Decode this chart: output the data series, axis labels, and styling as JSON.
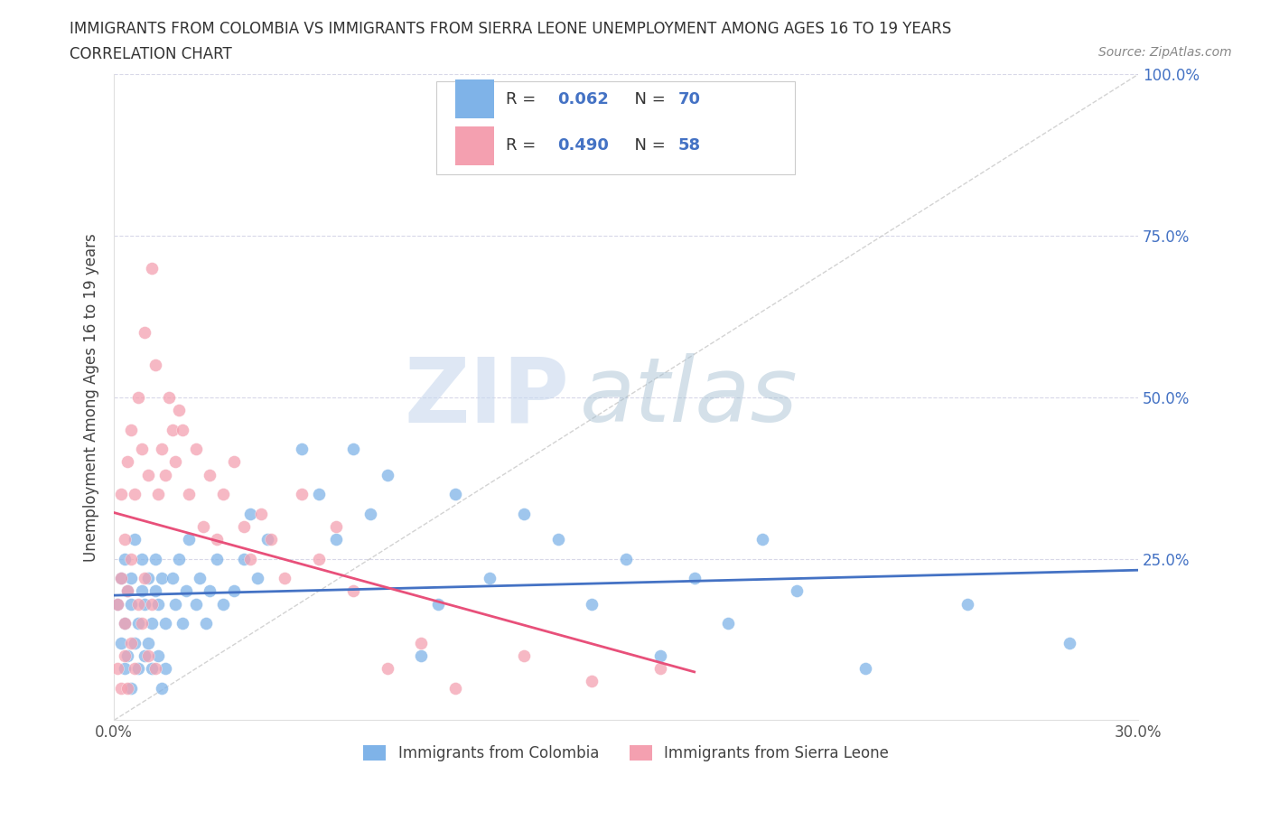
{
  "title_line1": "IMMIGRANTS FROM COLOMBIA VS IMMIGRANTS FROM SIERRA LEONE UNEMPLOYMENT AMONG AGES 16 TO 19 YEARS",
  "title_line2": "CORRELATION CHART",
  "source": "Source: ZipAtlas.com",
  "ylabel": "Unemployment Among Ages 16 to 19 years",
  "xlim": [
    0.0,
    0.3
  ],
  "ylim": [
    0.0,
    1.0
  ],
  "colombia_R": 0.062,
  "colombia_N": 70,
  "sierraleone_R": 0.49,
  "sierraleone_N": 58,
  "colombia_color": "#7fb3e8",
  "sierraleone_color": "#f4a0b0",
  "colombia_line_color": "#4472c4",
  "sierraleone_line_color": "#e8507a",
  "watermark_zip": "ZIP",
  "watermark_atlas": "atlas",
  "watermark_color_zip": "#c8d8ee",
  "watermark_color_atlas": "#9ab8d8",
  "background_color": "#ffffff",
  "grid_color": "#d8d8e8",
  "ref_line_color": "#c8c8c8"
}
